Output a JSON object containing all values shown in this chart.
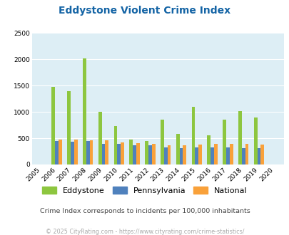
{
  "title": "Eddystone Violent Crime Index",
  "years": [
    2005,
    2006,
    2007,
    2008,
    2009,
    2010,
    2011,
    2012,
    2013,
    2014,
    2015,
    2016,
    2017,
    2018,
    2019,
    2020
  ],
  "eddystone": [
    0,
    1480,
    1400,
    2010,
    1000,
    730,
    470,
    450,
    850,
    580,
    1090,
    560,
    850,
    1010,
    890,
    0
  ],
  "pennsylvania": [
    0,
    450,
    430,
    450,
    390,
    390,
    370,
    360,
    330,
    310,
    330,
    320,
    320,
    310,
    310,
    0
  ],
  "national": [
    0,
    470,
    470,
    460,
    460,
    420,
    410,
    390,
    370,
    370,
    380,
    390,
    390,
    390,
    380,
    0
  ],
  "ylim": [
    0,
    2500
  ],
  "yticks": [
    0,
    500,
    1000,
    1500,
    2000,
    2500
  ],
  "color_eddystone": "#8dc63f",
  "color_pennsylvania": "#4f81bd",
  "color_national": "#f9a13a",
  "bg_color": "#ddeef5",
  "title_color": "#1464a5",
  "subtitle": "Crime Index corresponds to incidents per 100,000 inhabitants",
  "footer": "© 2025 CityRating.com - https://www.cityrating.com/crime-statistics/",
  "footer_color": "#aaaaaa",
  "subtitle_color": "#444444",
  "bar_width": 0.22
}
